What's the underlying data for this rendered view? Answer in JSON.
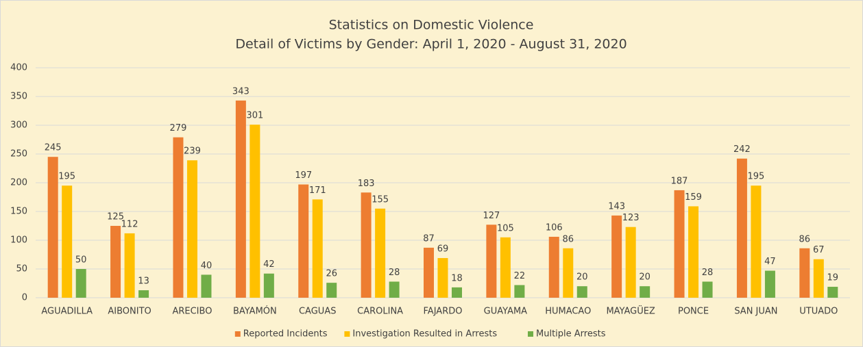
{
  "chart_data": {
    "type": "bar",
    "title": "Statistics on Domestic Violence",
    "subtitle": "Detail of Victims by Gender: April 1, 2020 - August 31, 2020",
    "categories": [
      "AGUADILLA",
      "AIBONITO",
      "ARECIBO",
      "BAYAMÓN",
      "CAGUAS",
      "CAROLINA",
      "FAJARDO",
      "GUAYAMA",
      "HUMACAO",
      "MAYAGÜEZ",
      "PONCE",
      "SAN JUAN",
      "UTUADO"
    ],
    "series": [
      {
        "name": "Reported Incidents",
        "color": "#ed7d31",
        "values": [
          245,
          125,
          279,
          343,
          197,
          183,
          87,
          127,
          106,
          143,
          187,
          242,
          86
        ]
      },
      {
        "name": "Investigation Resulted in Arrests",
        "color": "#ffc000",
        "values": [
          195,
          112,
          239,
          301,
          171,
          155,
          69,
          105,
          86,
          123,
          159,
          195,
          67
        ]
      },
      {
        "name": "Multiple Arrests",
        "color": "#70ad47",
        "values": [
          50,
          13,
          40,
          42,
          26,
          28,
          18,
          22,
          20,
          20,
          28,
          47,
          19
        ]
      }
    ],
    "ylim": [
      0,
      400
    ],
    "yticks": [
      0,
      50,
      100,
      150,
      200,
      250,
      300,
      350,
      400
    ],
    "grid": true,
    "legend": "bottom"
  }
}
